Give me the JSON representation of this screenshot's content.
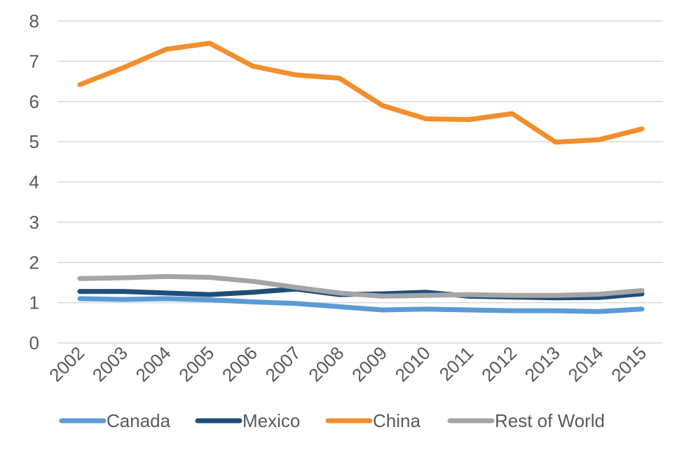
{
  "chart_data": {
    "type": "line",
    "title": "",
    "xlabel": "",
    "ylabel": "",
    "categories": [
      "2002",
      "2003",
      "2004",
      "2005",
      "2006",
      "2007",
      "2008",
      "2009",
      "2010",
      "2011",
      "2012",
      "2013",
      "2014",
      "2015"
    ],
    "ylim": [
      0,
      8
    ],
    "yticks": [
      "0",
      "1",
      "2",
      "3",
      "4",
      "5",
      "6",
      "7",
      "8"
    ],
    "grid": true,
    "legend_position": "bottom",
    "series": [
      {
        "name": "Canada",
        "color": "#5b9bd5",
        "values": [
          1.1,
          1.08,
          1.1,
          1.07,
          1.02,
          0.98,
          0.9,
          0.82,
          0.84,
          0.82,
          0.8,
          0.8,
          0.78,
          0.84
        ]
      },
      {
        "name": "Mexico",
        "color": "#1f4e79",
        "values": [
          1.28,
          1.28,
          1.24,
          1.2,
          1.26,
          1.34,
          1.2,
          1.22,
          1.26,
          1.16,
          1.14,
          1.12,
          1.13,
          1.22
        ]
      },
      {
        "name": "China",
        "color": "#f28e2b",
        "values": [
          6.42,
          6.84,
          7.3,
          7.45,
          6.88,
          6.66,
          6.58,
          5.9,
          5.57,
          5.55,
          5.7,
          4.99,
          5.05,
          5.32
        ]
      },
      {
        "name": "Rest of World",
        "color": "#a5a5a5",
        "values": [
          1.6,
          1.62,
          1.65,
          1.63,
          1.53,
          1.38,
          1.24,
          1.16,
          1.18,
          1.2,
          1.18,
          1.18,
          1.21,
          1.3
        ]
      }
    ]
  }
}
